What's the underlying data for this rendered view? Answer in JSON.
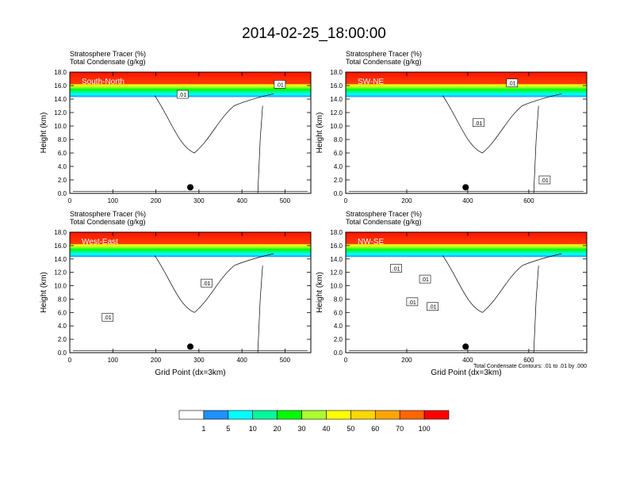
{
  "title": "2014-02-25_18:00:00",
  "panels": [
    {
      "id": "south-north",
      "name": "South-North",
      "title_line1": "Stratosphere Tracer   (%)",
      "title_line2": "Total Condensate   (g/kg)",
      "xlim": [
        0,
        560
      ],
      "xticks": [
        0,
        100,
        200,
        300,
        400,
        500
      ],
      "marker_x": 280,
      "show_xlabel": false,
      "footnote": "",
      "contour_labels": [
        {
          "text": ".01",
          "x": 262,
          "y": 14.7
        },
        {
          "text": ".01",
          "x": 488,
          "y": 16.2
        }
      ]
    },
    {
      "id": "sw-ne",
      "name": "SW-NE",
      "title_line1": "Stratosphere Tracer   (%)",
      "title_line2": "Total Condensate   (g/kg)",
      "xlim": [
        0,
        790
      ],
      "xticks": [
        0,
        200,
        400,
        600
      ],
      "marker_x": 393,
      "show_xlabel": false,
      "footnote": "",
      "contour_labels": [
        {
          "text": ".01",
          "x": 545,
          "y": 16.4
        },
        {
          "text": ".01",
          "x": 435,
          "y": 10.5
        },
        {
          "text": ".01",
          "x": 652,
          "y": 2.0
        }
      ]
    },
    {
      "id": "west-east",
      "name": "West-East",
      "title_line1": "Stratosphere Tracer   (%)",
      "title_line2": "Total Condensate   (g/kg)",
      "xlim": [
        0,
        560
      ],
      "xticks": [
        0,
        100,
        200,
        300,
        400,
        500
      ],
      "marker_x": 280,
      "show_xlabel": true,
      "footnote": "",
      "contour_labels": [
        {
          "text": ".01",
          "x": 318,
          "y": 10.4
        },
        {
          "text": ".01",
          "x": 88,
          "y": 5.3
        }
      ]
    },
    {
      "id": "nw-se",
      "name": "NW-SE",
      "title_line1": "Stratosphere Tracer   (%)",
      "title_line2": "Total Condensate   (g/kg)",
      "xlim": [
        0,
        790
      ],
      "xticks": [
        0,
        200,
        400,
        600
      ],
      "marker_x": 393,
      "show_xlabel": true,
      "footnote": "Total Condensate Contours: .01 to .01 by .000",
      "contour_labels": [
        {
          "text": ".01",
          "x": 165,
          "y": 12.6
        },
        {
          "text": ".01",
          "x": 218,
          "y": 7.6
        },
        {
          "text": ".01",
          "x": 260,
          "y": 11.0
        },
        {
          "text": ".01",
          "x": 285,
          "y": 6.9
        }
      ]
    }
  ],
  "axes": {
    "ylabel": "Height (km)",
    "xlabel": "Grid Point (dx=3km)",
    "ylim": [
      0,
      18
    ],
    "yticks": [
      0,
      2,
      4,
      6,
      8,
      10,
      12,
      14,
      16,
      18
    ],
    "ytick_labels": [
      "0.0",
      "2.0",
      "4.0",
      "6.0",
      "8.0",
      "10.0",
      "12.0",
      "14.0",
      "16.0",
      "18.0"
    ]
  },
  "colorbar": {
    "labels": [
      "1",
      "5",
      "10",
      "20",
      "30",
      "40",
      "50",
      "60",
      "70",
      "100"
    ],
    "colors": [
      "#ffffff",
      "#1e90ff",
      "#00ffff",
      "#00fa9a",
      "#00ff00",
      "#adff2f",
      "#ffff00",
      "#ffd700",
      "#ffa500",
      "#ff6600",
      "#ff0000"
    ]
  },
  "chart_data": {
    "type": "heatmap",
    "title": "2014-02-25_18:00:00",
    "variables": [
      "Stratosphere Tracer (%)",
      "Total Condensate (g/kg)"
    ],
    "xlabel": "Grid Point (dx=3km)",
    "ylabel": "Height (km)",
    "ylim": [
      0,
      18
    ],
    "levels": [
      1,
      5,
      10,
      20,
      30,
      40,
      50,
      60,
      70,
      100
    ],
    "contour_interval": "Total Condensate Contours: .01 to .01 by .000",
    "panels": [
      "South-North",
      "SW-NE",
      "West-East",
      "NW-SE"
    ]
  }
}
